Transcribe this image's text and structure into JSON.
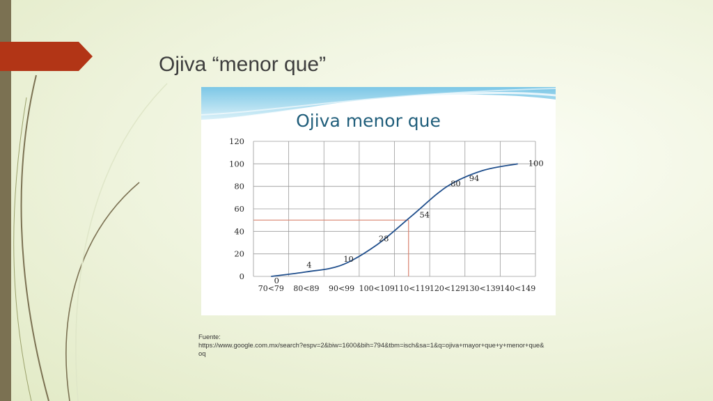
{
  "slide": {
    "title": "Ojiva “menor que”",
    "source_label": "Fuente:",
    "source_url": "https://www.google.com.mx/search?espv=2&biw=1600&bih=794&tbm=isch&sa=1&q=ojiva+mayor+que+y+menor+que&oq"
  },
  "colors": {
    "accent_flag": "#b23516",
    "left_bar": "#7b7152",
    "line": "#1f4e8c",
    "reference_line": "#d9826e",
    "chart_title": "#1f5d7a"
  },
  "chart_data": {
    "type": "line",
    "title": "Ojiva menor que",
    "xlabel": "",
    "ylabel": "",
    "categories": [
      "70<79",
      "80<89",
      "90<99",
      "100<109",
      "110<119",
      "120<129",
      "130<139",
      "140<149"
    ],
    "x_positions": [
      0.5,
      1.5,
      2.5,
      3.5,
      4.5,
      5.5,
      6.5,
      7.5
    ],
    "values": [
      0,
      4,
      10,
      28,
      54,
      80,
      94,
      100
    ],
    "data_labels": [
      "0",
      "4",
      "10",
      "28",
      "54",
      "80",
      "94",
      "100"
    ],
    "yticks": [
      0,
      20,
      40,
      60,
      80,
      100,
      120
    ],
    "ylim": [
      0,
      120
    ],
    "xlim": [
      0,
      8
    ],
    "grid": true,
    "reference_lines": {
      "y": 50,
      "x": 4.4
    }
  }
}
